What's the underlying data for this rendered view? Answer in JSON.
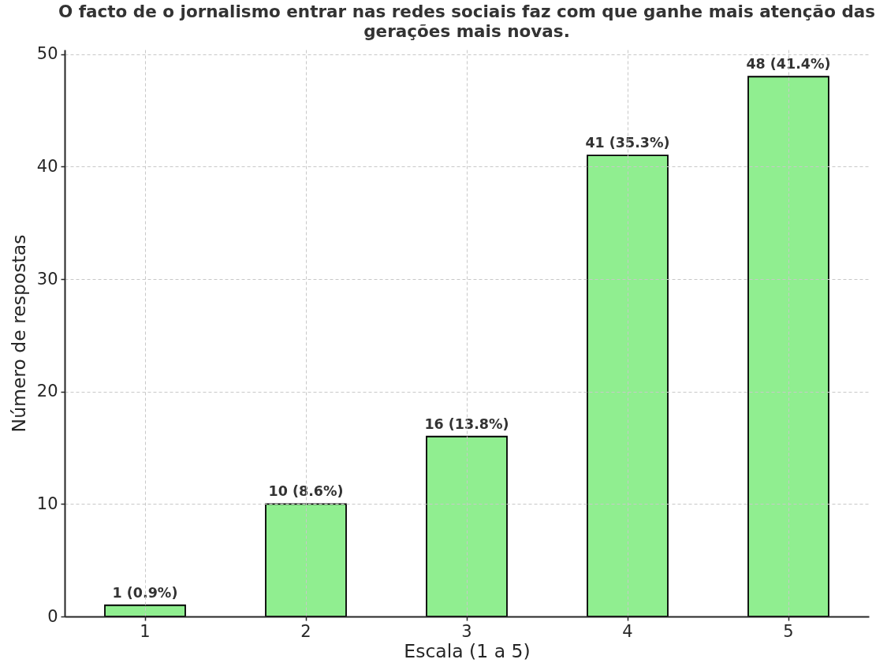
{
  "chart_data": {
    "type": "bar",
    "title": "O facto de o jornalismo entrar nas redes sociais faz com que ganhe mais atenção das\ngerações mais novas.",
    "xlabel": "Escala (1 a 5)",
    "ylabel": "Número de respostas",
    "categories": [
      "1",
      "2",
      "3",
      "4",
      "5"
    ],
    "values": [
      1,
      10,
      16,
      41,
      48
    ],
    "value_labels": [
      "1 (0.9%)",
      "10 (8.6%)",
      "16 (13.8%)",
      "41 (35.3%)",
      "48 (41.4%)"
    ],
    "color": "#90ee90",
    "ylim": [
      0,
      50.4
    ],
    "yticks": [
      0,
      10,
      20,
      30,
      40,
      50
    ],
    "grid": true
  }
}
